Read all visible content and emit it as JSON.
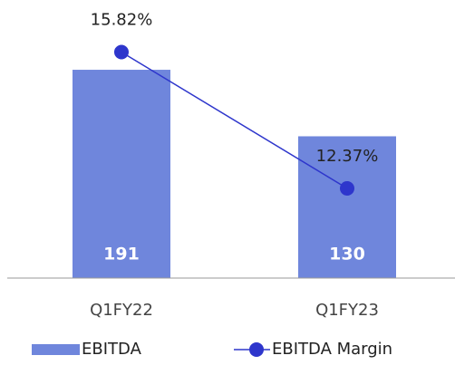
{
  "chart_data": {
    "type": "bar",
    "categories": [
      "Q1FY22",
      "Q1FY23"
    ],
    "series": [
      {
        "name": "EBITDA",
        "type": "bar",
        "color": "#6f86dc",
        "values": [
          191,
          130
        ]
      },
      {
        "name": "EBITDA Margin",
        "type": "line",
        "axis": "y2",
        "color": "#2e36cc",
        "values": [
          15.82,
          12.37
        ],
        "value_labels": [
          "15.82%",
          "12.37%"
        ]
      }
    ],
    "ylim": [
      0,
      250
    ],
    "y2lim": [
      10.1,
      17
    ]
  }
}
